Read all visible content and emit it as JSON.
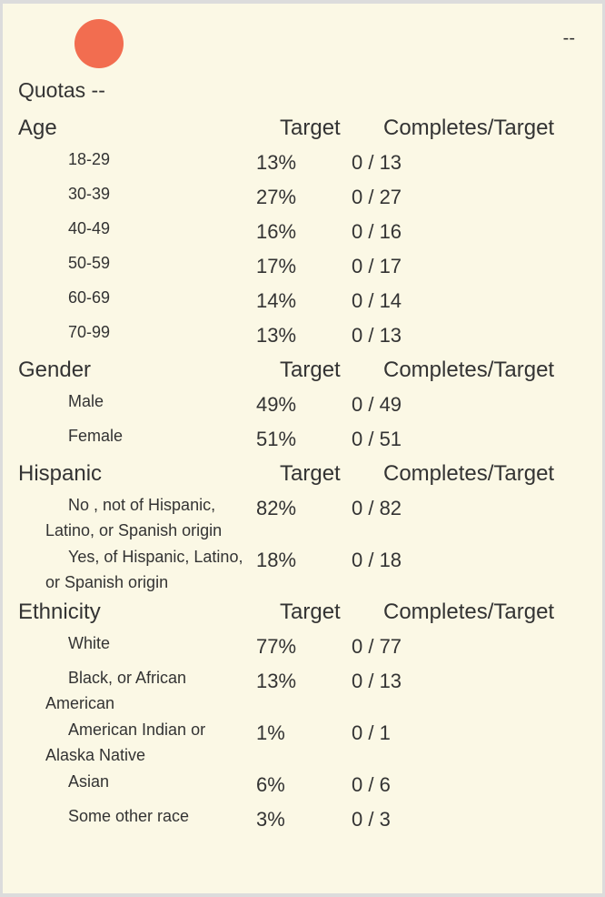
{
  "header": {
    "corner_text": "--",
    "title": "Quotas --",
    "brand_color": "#f26d50"
  },
  "sections": [
    {
      "name": "Age",
      "target_label": "Target",
      "completes_label": "Completes/Target",
      "rows": [
        {
          "label": "18-29",
          "target": "13%",
          "completes": "0 / 13"
        },
        {
          "label": "30-39",
          "target": "27%",
          "completes": "0 / 27"
        },
        {
          "label": "40-49",
          "target": "16%",
          "completes": "0 / 16"
        },
        {
          "label": "50-59",
          "target": "17%",
          "completes": "0 / 17"
        },
        {
          "label": "60-69",
          "target": "14%",
          "completes": "0 / 14"
        },
        {
          "label": "70-99",
          "target": "13%",
          "completes": "0 / 13"
        }
      ]
    },
    {
      "name": "Gender",
      "target_label": "Target",
      "completes_label": "Completes/Target",
      "rows": [
        {
          "label": "Male",
          "target": "49%",
          "completes": "0 / 49"
        },
        {
          "label": "Female",
          "target": "51%",
          "completes": "0 / 51"
        }
      ]
    },
    {
      "name": "Hispanic",
      "target_label": "Target",
      "completes_label": "Completes/Target",
      "rows": [
        {
          "label": "No , not of Hispanic, Latino, or Spanish origin",
          "target": "82%",
          "completes": "0 / 82"
        },
        {
          "label": "Yes, of Hispanic, Latino, or Spanish origin",
          "target": "18%",
          "completes": "0 / 18"
        }
      ]
    },
    {
      "name": "Ethnicity",
      "target_label": "Target",
      "completes_label": "Completes/Target",
      "rows": [
        {
          "label": "White",
          "target": "77%",
          "completes": "0 / 77"
        },
        {
          "label": "Black, or African American",
          "target": "13%",
          "completes": "0 / 13"
        },
        {
          "label": "American Indian or Alaska Native",
          "target": "1%",
          "completes": "0 / 1"
        },
        {
          "label": "Asian",
          "target": "6%",
          "completes": "0 / 6"
        },
        {
          "label": "Some other race",
          "target": "3%",
          "completes": "0 / 3"
        }
      ]
    }
  ]
}
